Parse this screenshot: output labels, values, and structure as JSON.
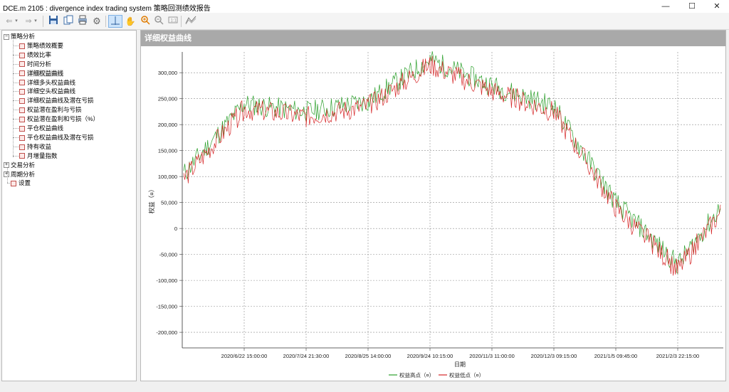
{
  "window": {
    "title": "DCE.m 2105 : divergence index trading system 策略回测绩效报告",
    "minimize": "—",
    "maximize": "☐",
    "close": "✕"
  },
  "toolbar": {
    "back_icon": "arrow-left-icon",
    "forward_icon": "arrow-right-icon",
    "save_icon": "save-icon",
    "copy_icon": "copy-icon",
    "print_icon": "print-icon",
    "settings_icon": "gear-icon",
    "crosshair_icon": "crosshair-icon",
    "pan_icon": "hand-icon",
    "zoom_in_icon": "zoom-in-icon",
    "zoom_out_icon": "zoom-out-icon",
    "reset_icon": "reset-zoom-icon",
    "chart_icon": "chart-icon"
  },
  "tree": {
    "groups": [
      {
        "label": "策略分析",
        "expanded": true,
        "items": [
          "策略绩效概要",
          "绩效比率",
          "时间分析",
          "详细权益曲线",
          "详细多头权益曲线",
          "详细空头权益曲线",
          "详细权益曲线及潜在亏损",
          "权益潜在盈利与亏损",
          "权益潜在盈利和亏损（%）",
          "平仓权益曲线",
          "平仓权益曲线及潜在亏损",
          "持有收益",
          "月增量指数"
        ],
        "selected_index": 3
      },
      {
        "label": "交易分析",
        "expanded": false
      },
      {
        "label": "周期分析",
        "expanded": false
      }
    ],
    "root_item": "设置"
  },
  "panel": {
    "title": "详细权益曲线"
  },
  "chart_data": {
    "type": "line",
    "ylabel": "权益（¤）",
    "xlabel": "日期",
    "ylim": [
      -230000,
      340000
    ],
    "y_ticks": [
      300000,
      250000,
      200000,
      150000,
      100000,
      50000,
      0,
      -50000,
      -100000,
      -150000,
      -200000
    ],
    "y_tick_labels": [
      "300,000",
      "250,000",
      "200,000",
      "150,000",
      "100,000",
      "50,000",
      "0",
      "-50,000",
      "-100,000",
      "-150,000",
      "-200,000"
    ],
    "x_tick_labels": [
      "2020/6/22 15:00:00",
      "2020/7/24 21:30:00",
      "2020/8/25 14:00:00",
      "2020/9/24 10:15:00",
      "2020/11/3 11:00:00",
      "2020/12/3 09:15:00",
      "2021/1/5 09:45:00",
      "2021/2/3 22:15:00"
    ],
    "x": [
      "2020/6/10",
      "2020/6/22 15:00:00",
      "2020/7/24 21:30:00",
      "2020/8/25 14:00:00",
      "2020/9/24 10:15:00",
      "2020/11/3 11:00:00",
      "2020/12/3 09:15:00",
      "2021/1/5 09:45:00",
      "2021/2/3 22:15:00",
      "2021/2/23"
    ],
    "grid": true,
    "legend_position": "bottom",
    "series": [
      {
        "name": "权益高点（¤）",
        "color": "#2ca02c",
        "values": [
          105000,
          240000,
          225000,
          245000,
          325000,
          275000,
          235000,
          50000,
          -70000,
          40000
        ]
      },
      {
        "name": "权益低点（¤）",
        "color": "#d62728",
        "values": [
          95000,
          230000,
          215000,
          235000,
          315000,
          265000,
          225000,
          40000,
          -80000,
          30000
        ]
      }
    ]
  }
}
